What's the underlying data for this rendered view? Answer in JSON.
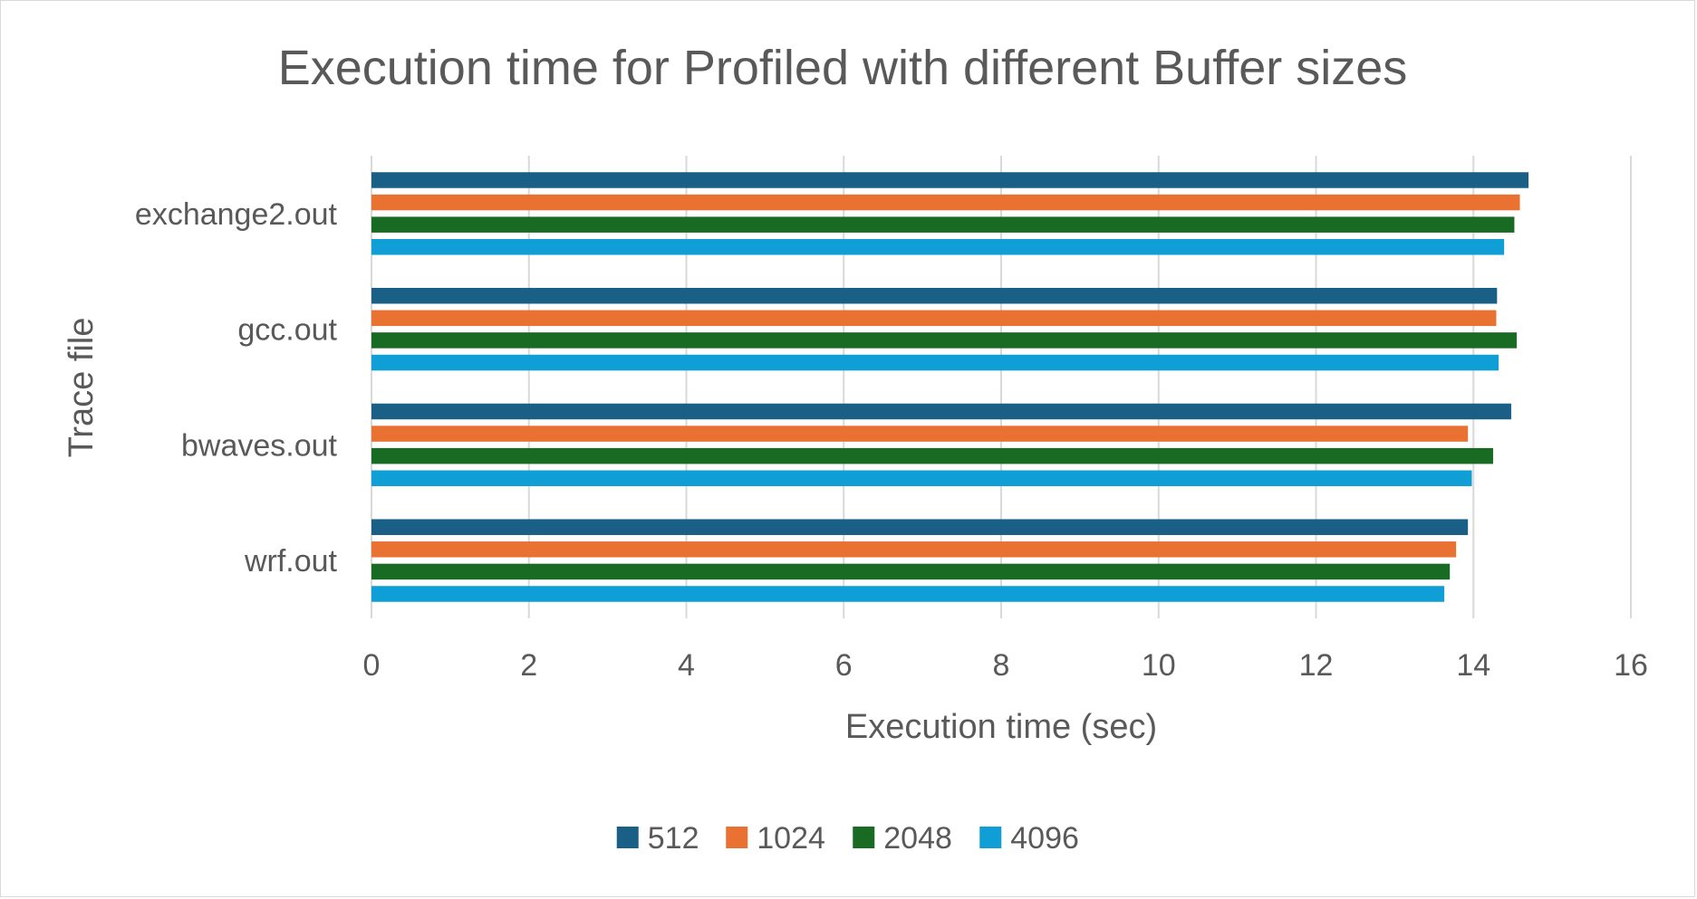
{
  "chart_data": {
    "type": "bar",
    "orientation": "horizontal",
    "title": "Execution time for Profiled with different Buffer sizes",
    "xlabel": "Execution time (sec)",
    "ylabel": "Trace file",
    "categories": [
      "exchange2.out",
      "gcc.out",
      "bwaves.out",
      "wrf.out"
    ],
    "xlim": [
      0,
      16
    ],
    "xticks": [
      0,
      2,
      4,
      6,
      8,
      10,
      12,
      14,
      16
    ],
    "grid": true,
    "legend_position": "bottom",
    "series": [
      {
        "name": "512",
        "color": "#1a5f86",
        "values": [
          14.7,
          14.3,
          14.48,
          13.93
        ]
      },
      {
        "name": "1024",
        "color": "#e97132",
        "values": [
          14.59,
          14.29,
          13.93,
          13.78
        ]
      },
      {
        "name": "2048",
        "color": "#196b24",
        "values": [
          14.52,
          14.55,
          14.25,
          13.7
        ]
      },
      {
        "name": "4096",
        "color": "#0f9ed5",
        "values": [
          14.39,
          14.32,
          13.98,
          13.63
        ]
      }
    ]
  }
}
